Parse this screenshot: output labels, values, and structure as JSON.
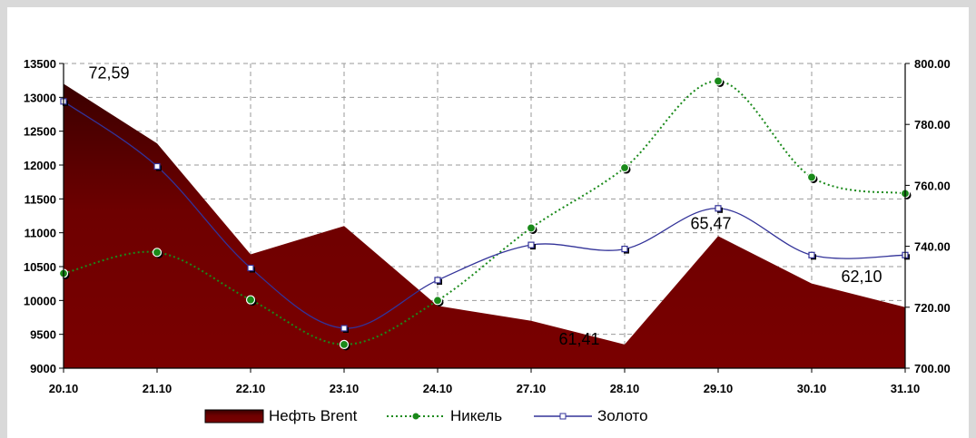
{
  "chart_data": {
    "type": "line",
    "categories": [
      "20.10",
      "21.10",
      "22.10",
      "23.10",
      "24.10",
      "27.10",
      "28.10",
      "29.10",
      "30.10",
      "31.10"
    ],
    "y_left": {
      "ylim": [
        9000,
        13500
      ],
      "ticks": [
        9000,
        9500,
        10000,
        10500,
        11000,
        11500,
        12000,
        12500,
        13000,
        13500
      ]
    },
    "y_right": {
      "ylim": [
        700,
        800
      ],
      "ticks": [
        "700.00",
        "720.00",
        "740.00",
        "760.00",
        "780.00",
        "800.00"
      ]
    },
    "grid": true,
    "legend_position": "bottom",
    "series": [
      {
        "name": "Нефть Brent",
        "kind": "area",
        "axis": "left",
        "color": "#7a0000",
        "values": [
          13200,
          12320,
          10680,
          11100,
          9920,
          9700,
          9350,
          10950,
          10250,
          9900
        ]
      },
      {
        "name": "Никель",
        "kind": "line-dotted",
        "axis": "left",
        "color": "#1a8a1a",
        "values": [
          10400,
          10710,
          10010,
          9350,
          10000,
          11070,
          11960,
          13240,
          11820,
          11580
        ]
      },
      {
        "name": "Золото",
        "kind": "line",
        "axis": "left",
        "color": "#333399",
        "values": [
          12940,
          11980,
          10480,
          9590,
          10300,
          10820,
          10760,
          11360,
          10670,
          10670
        ]
      }
    ],
    "data_labels": [
      {
        "category_index": 0,
        "text": "72,59"
      },
      {
        "category_index": 6,
        "text": "61,41"
      },
      {
        "category_index": 7,
        "text": "65,47"
      },
      {
        "category_index": 9,
        "text": "62,10"
      }
    ]
  }
}
